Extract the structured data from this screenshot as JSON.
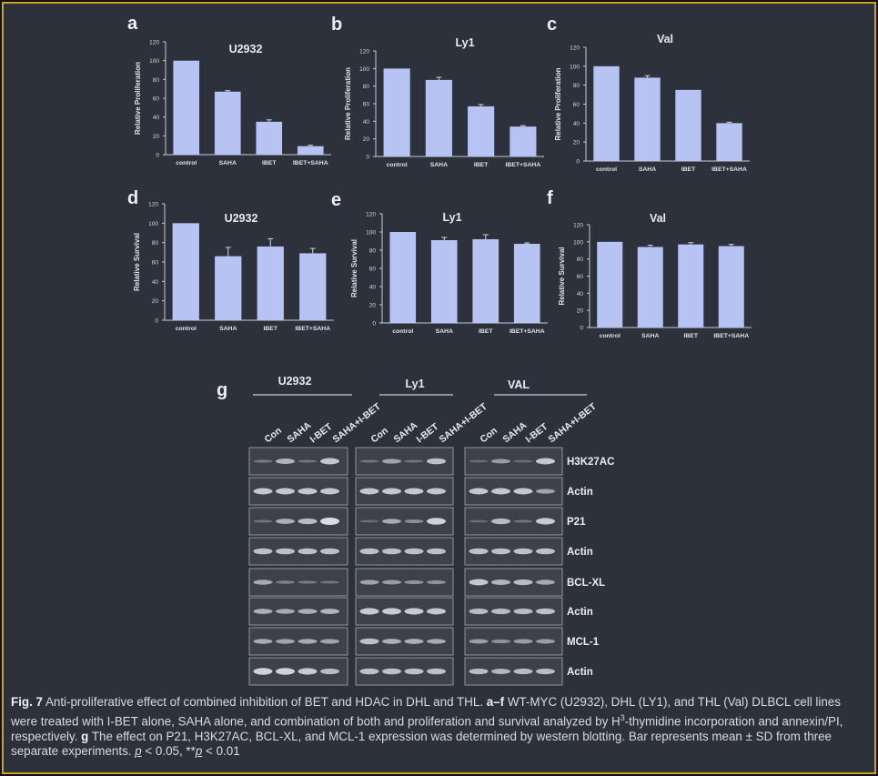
{
  "panels": [
    {
      "letter": "a",
      "title": "U2932",
      "ylabel": "Relative Proliferation",
      "categories": [
        "control",
        "SAHA",
        "IBET",
        "IBET+SAHA"
      ],
      "values": [
        100,
        67,
        35,
        9
      ],
      "errors": [
        0,
        1,
        2,
        1
      ],
      "ylim": [
        0,
        120
      ],
      "ticks": [
        "0",
        "20",
        "40",
        "60",
        "80",
        "100",
        "120"
      ]
    },
    {
      "letter": "b",
      "title": "Ly1",
      "ylabel": "Relative Proliferation",
      "categories": [
        "control",
        "SAHA",
        "IBET",
        "IBET+SAHA"
      ],
      "values": [
        100,
        87,
        57,
        34
      ],
      "errors": [
        0,
        3,
        2,
        1
      ],
      "ylim": [
        0,
        120
      ],
      "ticks": [
        "0",
        "20",
        "40",
        "60",
        "80",
        "100",
        "120"
      ]
    },
    {
      "letter": "c",
      "title": "Val",
      "ylabel": "Relative Proliferation",
      "categories": [
        "control",
        "SAHA",
        "IBET",
        "IBET+SAHA"
      ],
      "values": [
        100,
        88,
        75,
        40
      ],
      "errors": [
        0,
        2,
        0,
        1
      ],
      "ylim": [
        0,
        120
      ],
      "ticks": [
        "0",
        "20",
        "40",
        "60",
        "80",
        "100",
        "120"
      ]
    },
    {
      "letter": "d",
      "title": "U2932",
      "ylabel": "Relative Survival",
      "categories": [
        "control",
        "SAHA",
        "IBET",
        "IBET+SAHA"
      ],
      "values": [
        100,
        66,
        76,
        69
      ],
      "errors": [
        0,
        9,
        8,
        5
      ],
      "ylim": [
        0,
        120
      ],
      "ticks": [
        "0",
        "20",
        "40",
        "60",
        "80",
        "100",
        "120"
      ]
    },
    {
      "letter": "e",
      "title": "Ly1",
      "ylabel": "Relative Survival",
      "categories": [
        "control",
        "SAHA",
        "IBET",
        "IBET+SAHA"
      ],
      "values": [
        100,
        91,
        92,
        87
      ],
      "errors": [
        0,
        3,
        5,
        1
      ],
      "ylim": [
        0,
        120
      ],
      "ticks": [
        "0",
        "20",
        "40",
        "60",
        "80",
        "100",
        "120"
      ]
    },
    {
      "letter": "f",
      "title": "Val",
      "ylabel": "Relative Survival",
      "categories": [
        "control",
        "SAHA",
        "IBET",
        "IBET+SAHA"
      ],
      "values": [
        100,
        94,
        97,
        95
      ],
      "errors": [
        0,
        2,
        2,
        2
      ],
      "ylim": [
        0,
        120
      ],
      "ticks": [
        "0",
        "20",
        "40",
        "60",
        "80",
        "100",
        "120"
      ]
    }
  ],
  "chart_data": [
    {
      "type": "bar",
      "title": "U2932",
      "ylabel": "Relative Proliferation",
      "categories": [
        "control",
        "SAHA",
        "IBET",
        "IBET+SAHA"
      ],
      "values": [
        100,
        67,
        35,
        9
      ],
      "ylim": [
        0,
        120
      ]
    },
    {
      "type": "bar",
      "title": "Ly1",
      "ylabel": "Relative Proliferation",
      "categories": [
        "control",
        "SAHA",
        "IBET",
        "IBET+SAHA"
      ],
      "values": [
        100,
        87,
        57,
        34
      ],
      "ylim": [
        0,
        120
      ]
    },
    {
      "type": "bar",
      "title": "Val",
      "ylabel": "Relative Proliferation",
      "categories": [
        "control",
        "SAHA",
        "IBET",
        "IBET+SAHA"
      ],
      "values": [
        100,
        88,
        75,
        40
      ],
      "ylim": [
        0,
        120
      ]
    },
    {
      "type": "bar",
      "title": "U2932",
      "ylabel": "Relative Survival",
      "categories": [
        "control",
        "SAHA",
        "IBET",
        "IBET+SAHA"
      ],
      "values": [
        100,
        66,
        76,
        69
      ],
      "ylim": [
        0,
        120
      ]
    },
    {
      "type": "bar",
      "title": "Ly1",
      "ylabel": "Relative Survival",
      "categories": [
        "control",
        "SAHA",
        "IBET",
        "IBET+SAHA"
      ],
      "values": [
        100,
        91,
        92,
        87
      ],
      "ylim": [
        0,
        120
      ]
    },
    {
      "type": "bar",
      "title": "Val",
      "ylabel": "Relative Survival",
      "categories": [
        "control",
        "SAHA",
        "IBET",
        "IBET+SAHA"
      ],
      "values": [
        100,
        94,
        97,
        95
      ],
      "ylim": [
        0,
        120
      ]
    }
  ],
  "blot": {
    "letter": "g",
    "cell_lines": [
      "U2932",
      "Ly1",
      "VAL"
    ],
    "lanes": [
      "Con",
      "SAHA",
      "I-BET",
      "SAHA+I-BET"
    ],
    "rows": [
      "H3K27AC",
      "Actin",
      "P21",
      "Actin",
      "BCL-XL",
      "Actin",
      "MCL-1",
      "Actin"
    ],
    "intensity": [
      [
        [
          0.15,
          0.65,
          0.1,
          0.8
        ],
        [
          0.1,
          0.5,
          0.1,
          0.75
        ],
        [
          0.05,
          0.45,
          0.05,
          0.8
        ]
      ],
      [
        [
          0.8,
          0.8,
          0.8,
          0.8
        ],
        [
          0.8,
          0.8,
          0.8,
          0.8
        ],
        [
          0.8,
          0.8,
          0.8,
          0.5
        ]
      ],
      [
        [
          0.1,
          0.6,
          0.7,
          1.0
        ],
        [
          0.05,
          0.55,
          0.3,
          0.9
        ],
        [
          0.05,
          0.7,
          0.1,
          0.85
        ]
      ],
      [
        [
          0.75,
          0.75,
          0.75,
          0.75
        ],
        [
          0.75,
          0.75,
          0.75,
          0.75
        ],
        [
          0.75,
          0.75,
          0.75,
          0.75
        ]
      ],
      [
        [
          0.55,
          0.2,
          0.15,
          0.1
        ],
        [
          0.5,
          0.45,
          0.35,
          0.35
        ],
        [
          0.8,
          0.65,
          0.7,
          0.55
        ]
      ],
      [
        [
          0.6,
          0.55,
          0.6,
          0.65
        ],
        [
          0.85,
          0.85,
          0.85,
          0.8
        ],
        [
          0.7,
          0.7,
          0.7,
          0.75
        ]
      ],
      [
        [
          0.55,
          0.5,
          0.55,
          0.5
        ],
        [
          0.75,
          0.6,
          0.6,
          0.55
        ],
        [
          0.45,
          0.35,
          0.45,
          0.45
        ]
      ],
      [
        [
          0.9,
          0.9,
          0.85,
          0.7
        ],
        [
          0.75,
          0.75,
          0.75,
          0.75
        ],
        [
          0.7,
          0.65,
          0.7,
          0.7
        ]
      ]
    ]
  },
  "caption": {
    "fig_label": "Fig. 7",
    "text1": " Anti-proliferative effect of combined inhibition of BET and HDAC in DHL and THL. ",
    "bold_af": "a–f",
    "text2": " WT-MYC (U2932), DHL (LY1), and THL (Val) DLBCL cell lines were treated with I-BET alone, SAHA alone, and combination of both and proliferation and survival analyzed by H",
    "superscript": "3",
    "text3": "-thymidine incorporation and annexin/PI, respectively. ",
    "bold_g": "g",
    "text4": " The effect on P21, H3K27AC, BCL-XL, and MCL-1 expression was determined by western blotting. Bar represents mean ± SD from three separate experiments. ",
    "p1": "p",
    "p1_rest": " < 0.05, **",
    "p2": "p",
    "p2_rest": " < 0.01"
  },
  "colors": {
    "bar": "#b7c3f3",
    "background": "#2d313b",
    "border": "#c9a326",
    "text": "#d9dbe0",
    "blot_bg": "#3e4149",
    "band": "#e4e6ea"
  }
}
